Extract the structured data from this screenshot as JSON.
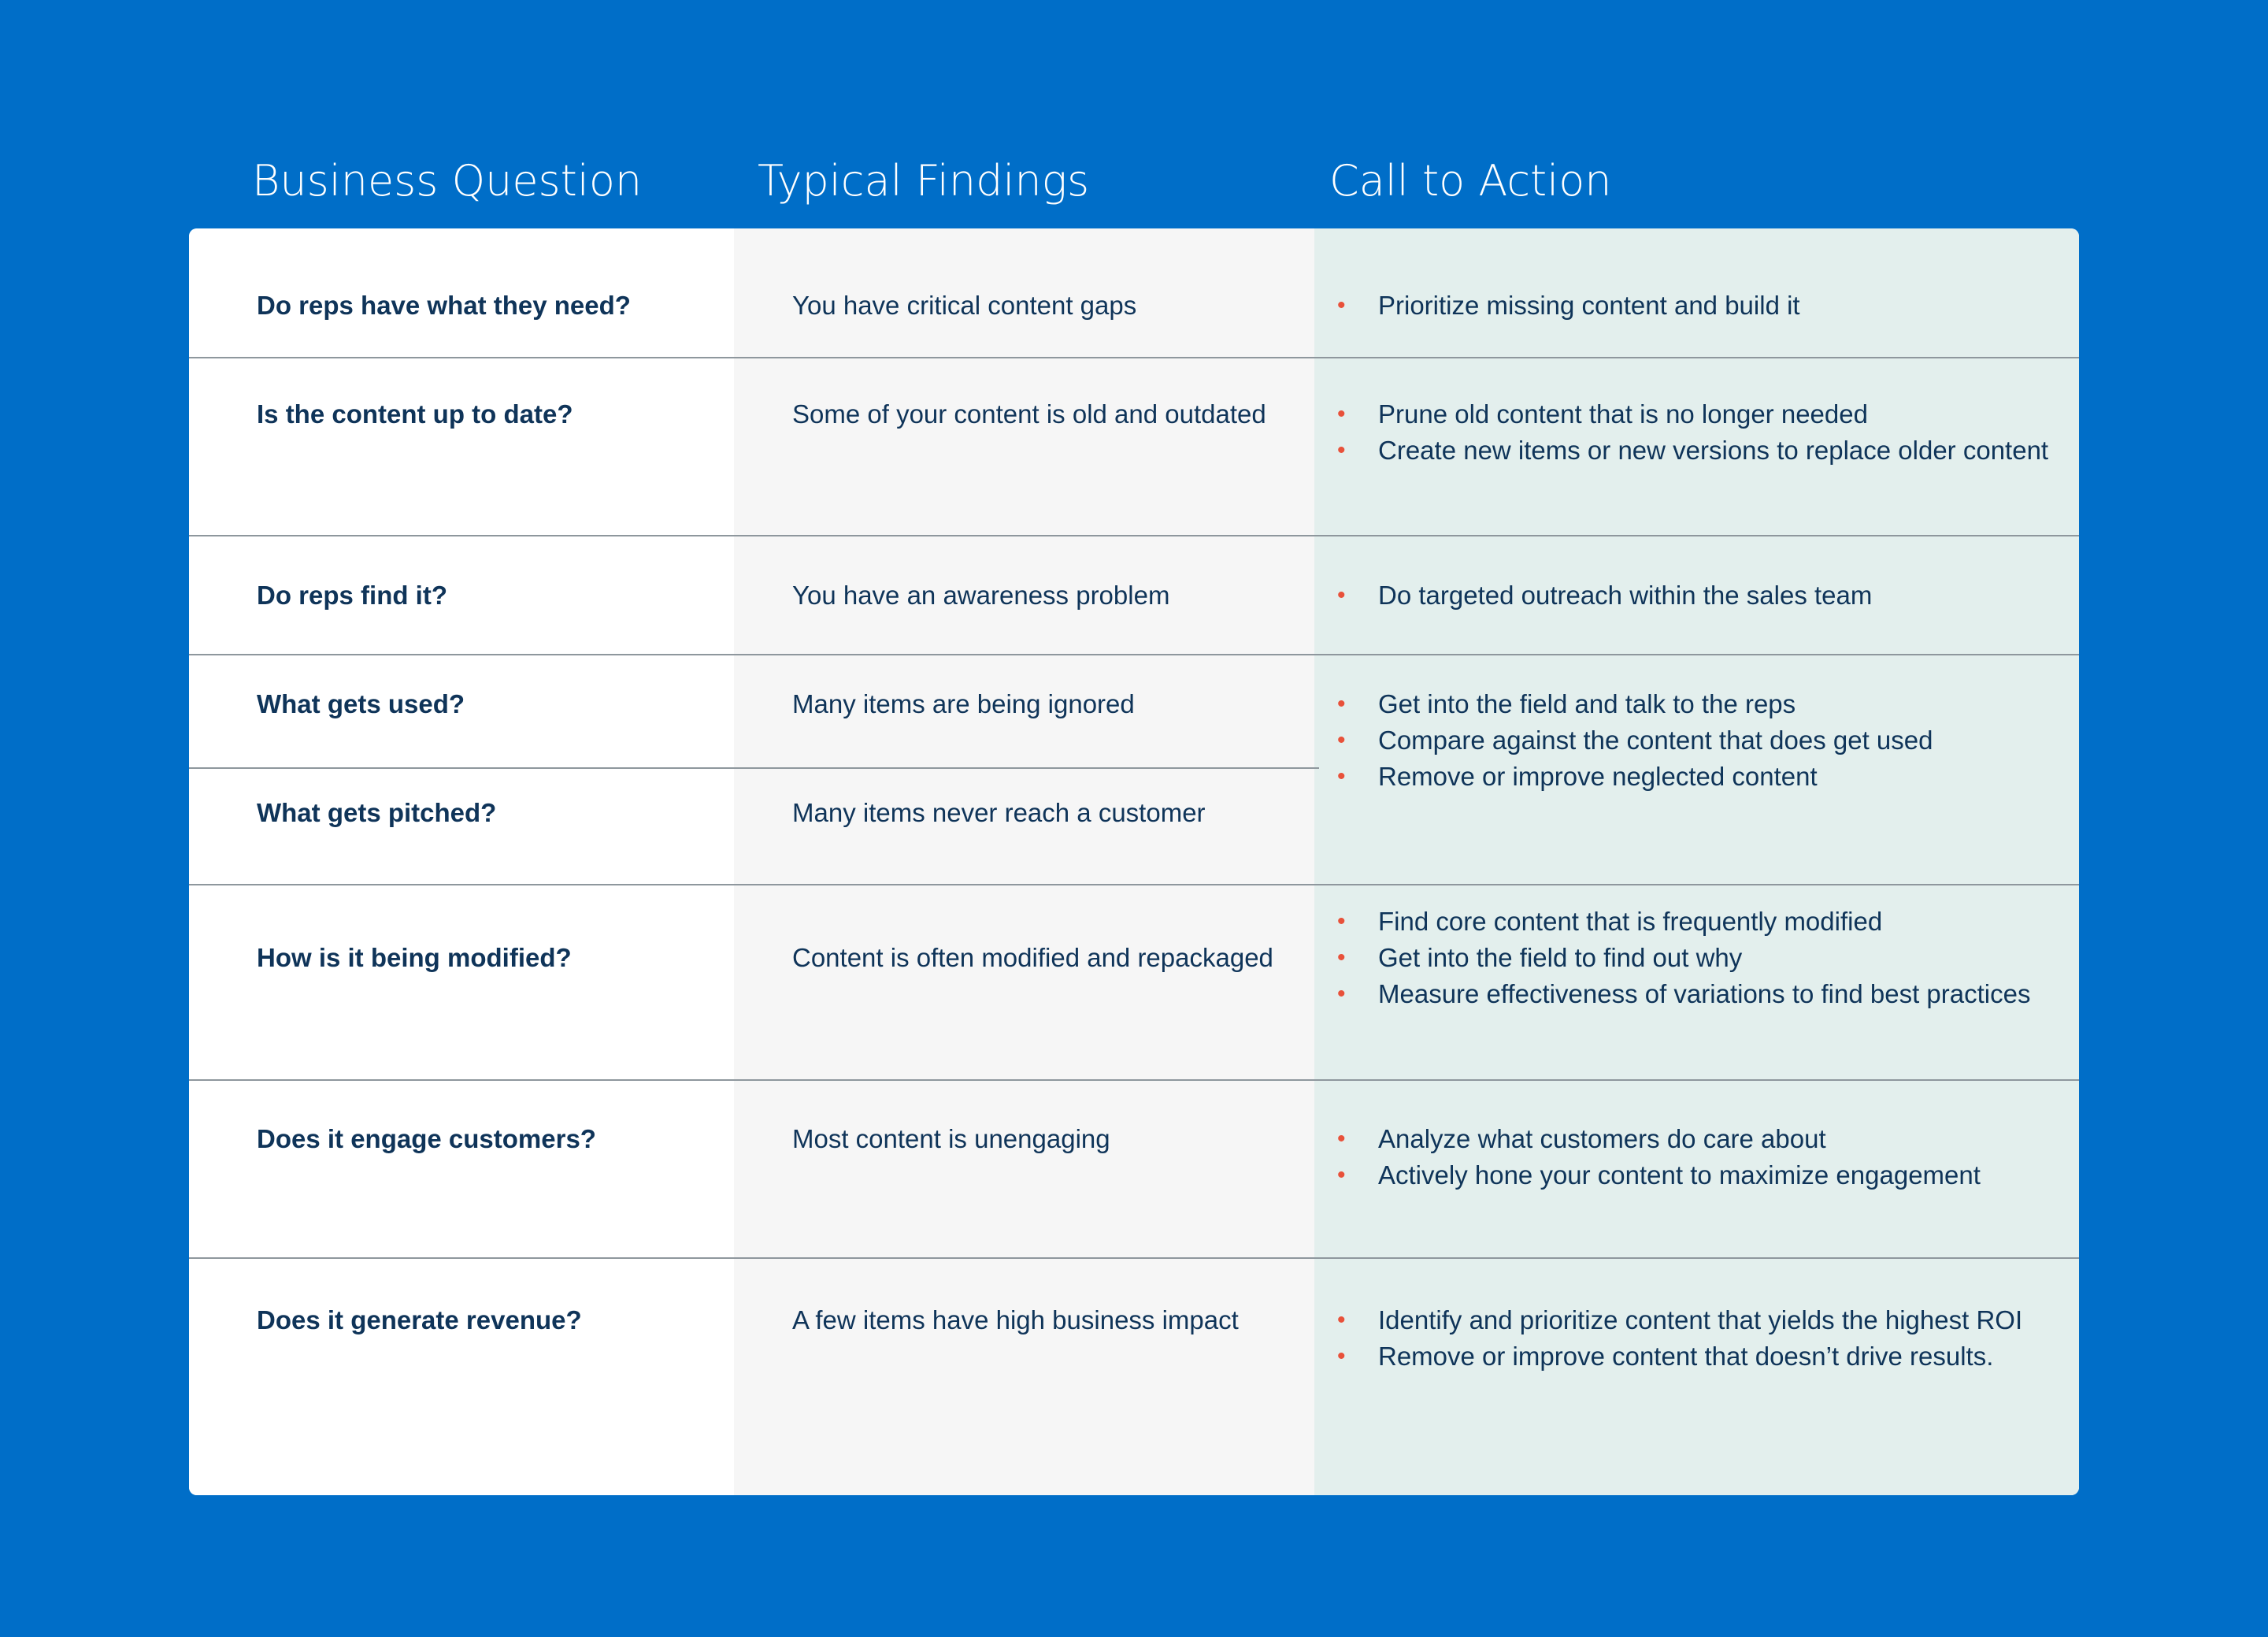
{
  "headers": {
    "question": "Business Question",
    "findings": "Typical Findings",
    "action": "Call to Action"
  },
  "colors": {
    "background": "#006ec8",
    "question_column": "#ffffff",
    "findings_column": "#f6f6f6",
    "action_column": "#e3efed",
    "text": "#0f3459",
    "bullet": "#e8513a",
    "divider": "#8e979d"
  },
  "rows": [
    {
      "question": "Do reps have what they need?",
      "finding": "You have critical content gaps",
      "actions": [
        "Prioritize missing content and build it"
      ]
    },
    {
      "question": "Is the content up to date?",
      "finding": "Some of your content is old and outdated",
      "actions": [
        "Prune old content that is no longer needed",
        "Create new items or new versions to replace older content"
      ]
    },
    {
      "question": "Do reps find it?",
      "finding": "You have an awareness problem",
      "actions": [
        "Do targeted outreach within the sales team"
      ]
    },
    {
      "question": "What gets used?",
      "finding": "Many items are being ignored",
      "actions": [
        "Get into the field and talk to the reps",
        "Compare against the content that does get used",
        "Remove or improve neglected content"
      ]
    },
    {
      "question": "What gets pitched?",
      "finding": "Many items never reach a customer",
      "actions": []
    },
    {
      "question": "How is it being modified?",
      "finding": "Content is often modified and repackaged",
      "actions": [
        "Find core content that is frequently modified",
        "Get into the field to find out why",
        "Measure effectiveness of variations to find best practices"
      ]
    },
    {
      "question": "Does it engage customers?",
      "finding": "Most content is unengaging",
      "actions": [
        "Analyze what customers do care about",
        "Actively hone your content to maximize engagement"
      ]
    },
    {
      "question": "Does it generate revenue?",
      "finding": "A few items have high business impact",
      "actions": [
        "Identify and prioritize content that yields the highest ROI",
        "Remove or improve content that doesn’t drive results."
      ]
    }
  ]
}
